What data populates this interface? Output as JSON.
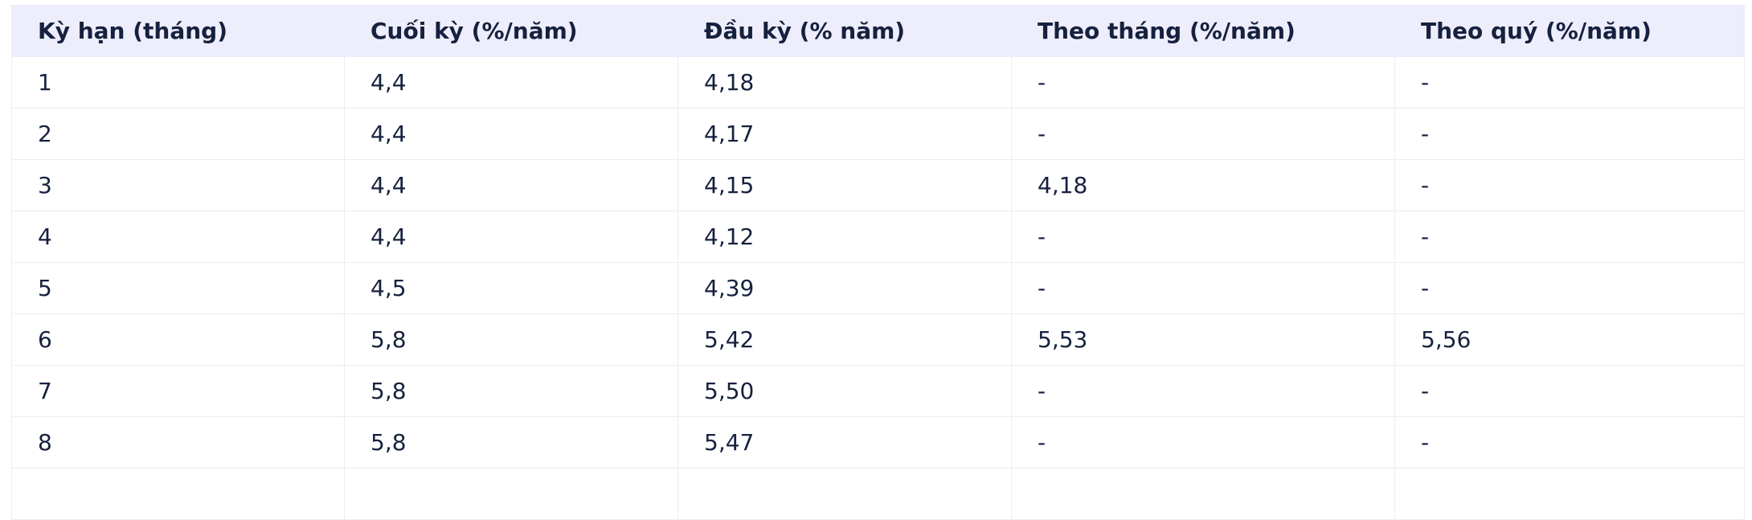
{
  "table": {
    "header": [
      "Kỳ hạn (tháng)",
      "Cuối kỳ (%/năm)",
      "Đầu kỳ (% năm)",
      "Theo tháng (%/năm)",
      "Theo quý (%/năm)"
    ],
    "rows": [
      [
        "1",
        "4,4",
        "4,18",
        "-",
        "-"
      ],
      [
        "2",
        "4,4",
        "4,17",
        "-",
        "-"
      ],
      [
        "3",
        "4,4",
        "4,15",
        "4,18",
        "-"
      ],
      [
        "4",
        "4,4",
        "4,12",
        "-",
        "-"
      ],
      [
        "5",
        "4,5",
        "4,39",
        "-",
        "-"
      ],
      [
        "6",
        "5,8",
        "5,42",
        "5,53",
        "5,56"
      ],
      [
        "7",
        "5,8",
        "5,50",
        "-",
        "-"
      ],
      [
        "8",
        "5,8",
        "5,47",
        "-",
        "-"
      ]
    ]
  }
}
